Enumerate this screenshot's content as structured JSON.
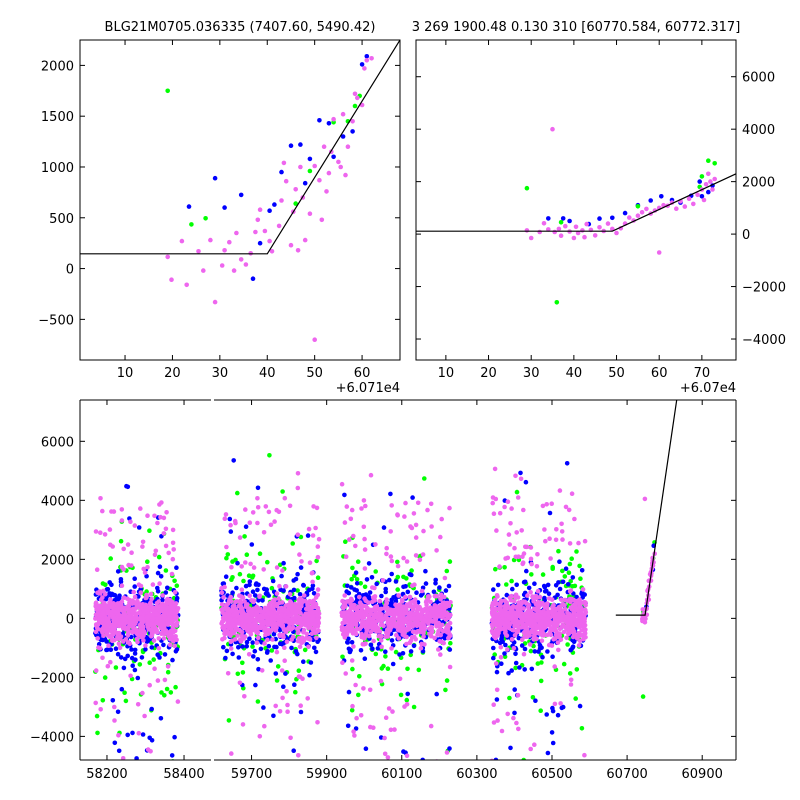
{
  "title_left": "BLG21M0705.036335 (7407.60, 5490.42)",
  "title_right": "3 269 1900.48 0.130 310 [60770.584, 60772.317]",
  "colors": {
    "blue": "#0000ff",
    "green": "#00ff00",
    "pink": "#ee66ee",
    "model": "#000000"
  },
  "chart_data": [
    {
      "type": "scatter",
      "panel": "top-left zoom",
      "offset_label": "+6.071e4",
      "xlim": [
        0.5,
        68
      ],
      "ylim": [
        -900,
        2250
      ],
      "xticks": [
        10,
        20,
        30,
        40,
        50,
        60
      ],
      "yticks": [
        -500,
        0,
        500,
        1000,
        1500,
        2000
      ],
      "model": {
        "x": [
          0.5,
          40,
          68
        ],
        "y": [
          145,
          145,
          2250
        ]
      },
      "series": [
        {
          "color": "blue",
          "points": [
            [
              23.5,
              610
            ],
            [
              29,
              890
            ],
            [
              34.5,
              725
            ],
            [
              38.5,
              250
            ],
            [
              40.5,
              570
            ],
            [
              41.5,
              630
            ],
            [
              43,
              950
            ],
            [
              45,
              1210
            ],
            [
              47,
              1220
            ],
            [
              49,
              1080
            ],
            [
              51,
              1460
            ],
            [
              53,
              1430
            ],
            [
              56,
              1300
            ],
            [
              58,
              1350
            ],
            [
              60,
              2010
            ],
            [
              61,
              2090
            ],
            [
              37,
              -100
            ],
            [
              31,
              600
            ],
            [
              48,
              840
            ],
            [
              54,
              1100
            ]
          ]
        },
        {
          "color": "green",
          "points": [
            [
              19,
              1750
            ],
            [
              24,
              435
            ],
            [
              27,
              495
            ],
            [
              46,
              640
            ],
            [
              49,
              960
            ],
            [
              57,
              1450
            ],
            [
              58.5,
              1600
            ],
            [
              59.5,
              1700
            ],
            [
              54,
              1440
            ]
          ]
        },
        {
          "color": "pink",
          "points": [
            [
              19,
              115
            ],
            [
              19.8,
              -110
            ],
            [
              22,
              270
            ],
            [
              23,
              -160
            ],
            [
              25.5,
              170
            ],
            [
              26.5,
              -20
            ],
            [
              28,
              280
            ],
            [
              29,
              -330
            ],
            [
              30.5,
              30
            ],
            [
              31,
              180
            ],
            [
              32,
              260
            ],
            [
              33,
              -20
            ],
            [
              33.5,
              350
            ],
            [
              34.5,
              90
            ],
            [
              35.5,
              40
            ],
            [
              36.5,
              150
            ],
            [
              37.5,
              360
            ],
            [
              38,
              480
            ],
            [
              38.5,
              580
            ],
            [
              39.5,
              370
            ],
            [
              40.5,
              270
            ],
            [
              41,
              170
            ],
            [
              42.5,
              420
            ],
            [
              43,
              670
            ],
            [
              43.5,
              1040
            ],
            [
              44,
              860
            ],
            [
              45,
              230
            ],
            [
              45.5,
              560
            ],
            [
              46,
              780
            ],
            [
              46.5,
              180
            ],
            [
              47,
              1000
            ],
            [
              47.5,
              700
            ],
            [
              48,
              280
            ],
            [
              49,
              540
            ],
            [
              50,
              -700
            ],
            [
              50,
              1010
            ],
            [
              51,
              870
            ],
            [
              51.5,
              480
            ],
            [
              52,
              1200
            ],
            [
              52.5,
              760
            ],
            [
              53,
              940
            ],
            [
              53.5,
              1150
            ],
            [
              54,
              1470
            ],
            [
              55,
              1050
            ],
            [
              55.5,
              1000
            ],
            [
              56,
              1520
            ],
            [
              56.5,
              920
            ],
            [
              57,
              1200
            ],
            [
              58,
              1450
            ],
            [
              58.5,
              1720
            ],
            [
              59,
              1680
            ],
            [
              60,
              1610
            ],
            [
              60.5,
              1970
            ],
            [
              61,
              2050
            ],
            [
              62,
              2070
            ],
            [
              59.3,
              2300
            ]
          ]
        }
      ]
    },
    {
      "type": "scatter",
      "panel": "top-right zoom",
      "offset_label": "+6.07e4",
      "xlim": [
        3,
        78
      ],
      "ylim": [
        -4800,
        7400
      ],
      "xticks": [
        10,
        20,
        30,
        40,
        50,
        60,
        70
      ],
      "yticks": [
        -4000,
        -2000,
        0,
        2000,
        4000,
        6000
      ],
      "model": {
        "x": [
          3,
          49,
          78
        ],
        "y": [
          110,
          110,
          2300
        ]
      },
      "series": [
        {
          "color": "blue",
          "points": [
            [
              34,
              600
            ],
            [
              37.5,
              600
            ],
            [
              39,
              500
            ],
            [
              43.5,
              380
            ],
            [
              46,
              590
            ],
            [
              49,
              620
            ],
            [
              52,
              800
            ],
            [
              55,
              1100
            ],
            [
              58,
              1280
            ],
            [
              60.5,
              1440
            ],
            [
              63,
              1300
            ],
            [
              65,
              1200
            ],
            [
              67.5,
              1460
            ],
            [
              70,
              1440
            ],
            [
              71.5,
              1600
            ],
            [
              72.5,
              1850
            ],
            [
              69.5,
              2000
            ]
          ]
        },
        {
          "color": "green",
          "points": [
            [
              29,
              1750
            ],
            [
              36,
              -2600
            ],
            [
              37,
              450
            ],
            [
              55,
              1060
            ],
            [
              70,
              2200
            ],
            [
              71.5,
              2800
            ],
            [
              73,
              2700
            ],
            [
              69.5,
              1800
            ]
          ]
        },
        {
          "color": "pink",
          "points": [
            [
              35,
              4000
            ],
            [
              29,
              140
            ],
            [
              30,
              -150
            ],
            [
              32,
              80
            ],
            [
              33,
              410
            ],
            [
              34,
              180
            ],
            [
              35.5,
              80
            ],
            [
              36.5,
              200
            ],
            [
              37,
              -60
            ],
            [
              38,
              300
            ],
            [
              39,
              100
            ],
            [
              40,
              -150
            ],
            [
              40.5,
              280
            ],
            [
              41,
              40
            ],
            [
              42,
              140
            ],
            [
              42.5,
              -120
            ],
            [
              43,
              380
            ],
            [
              44,
              160
            ],
            [
              45,
              -50
            ],
            [
              46,
              260
            ],
            [
              47,
              120
            ],
            [
              48,
              400
            ],
            [
              49,
              200
            ],
            [
              50,
              40
            ],
            [
              51,
              220
            ],
            [
              52,
              400
            ],
            [
              53,
              630
            ],
            [
              54,
              520
            ],
            [
              55,
              700
            ],
            [
              56,
              830
            ],
            [
              57,
              960
            ],
            [
              58,
              780
            ],
            [
              59,
              900
            ],
            [
              60,
              1000
            ],
            [
              60,
              -700
            ],
            [
              61,
              1100
            ],
            [
              62,
              1080
            ],
            [
              63,
              1200
            ],
            [
              64,
              970
            ],
            [
              65,
              1250
            ],
            [
              66,
              1050
            ],
            [
              67,
              1350
            ],
            [
              68,
              1150
            ],
            [
              69,
              1500
            ],
            [
              70,
              1700
            ],
            [
              70.5,
              1300
            ],
            [
              71,
              1900
            ],
            [
              72,
              2000
            ],
            [
              72.5,
              1700
            ],
            [
              71.5,
              2300
            ],
            [
              73,
              2100
            ]
          ]
        }
      ]
    },
    {
      "type": "scatter",
      "panel": "bottom full light curve (broken axis)",
      "ylim": [
        -4800,
        7400
      ],
      "yticks": [
        -4000,
        -2000,
        0,
        2000,
        4000,
        6000
      ],
      "segments": [
        {
          "xlim": [
            58130,
            58470
          ],
          "xticks": [
            58200,
            58400
          ],
          "seasons": [
            [
              58170,
              58385
            ]
          ]
        },
        {
          "xlim": [
            59600,
            60990
          ],
          "xticks": [
            59700,
            59900,
            60100,
            60300,
            60500,
            60700,
            60900
          ],
          "seasons": [
            [
              59620,
              59880
            ],
            [
              59940,
              60230
            ],
            [
              60340,
              60590
            ],
            [
              60740,
              60775
            ]
          ]
        }
      ],
      "model": {
        "x": [
          60670,
          60748,
          60832
        ],
        "y": [
          110,
          110,
          7400
        ]
      }
    }
  ]
}
